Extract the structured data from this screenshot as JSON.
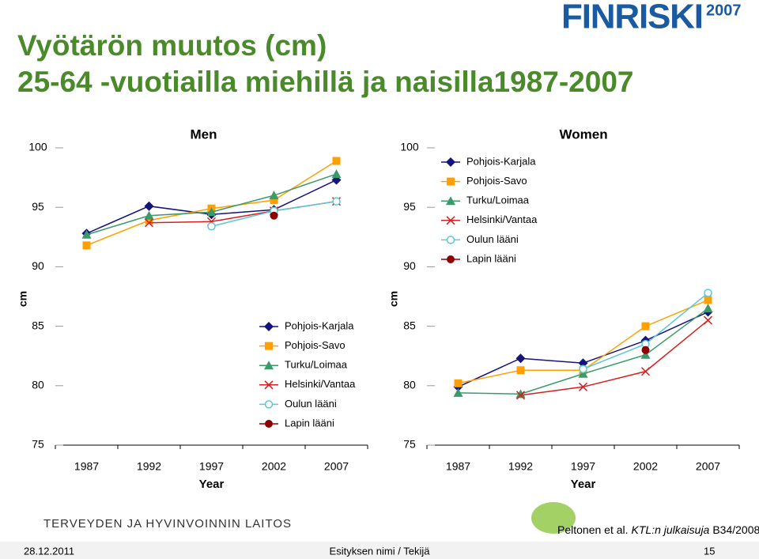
{
  "header": {
    "title": "Vyötärön muutos (cm)",
    "subtitle": "25-64 -vuotiailla miehillä ja naisilla1987-2007",
    "logo": "FINRISKI",
    "logo_year": "2007"
  },
  "chart_data": [
    {
      "type": "line",
      "title": "Men",
      "xlabel": "Year",
      "ylabel": "cm",
      "categories": [
        "1987",
        "1992",
        "1997",
        "2002",
        "2007"
      ],
      "ylim": [
        75,
        100
      ],
      "yticks": [
        75,
        80,
        85,
        90,
        95,
        100
      ],
      "legend": "lower right",
      "series": [
        {
          "name": "Pohjois-Karjala",
          "color": "#14147a",
          "marker": "diamond",
          "values": [
            92.8,
            95.1,
            94.4,
            94.8,
            97.3
          ]
        },
        {
          "name": "Pohjois-Savo",
          "color": "#ffa000",
          "marker": "square",
          "values": [
            91.8,
            93.9,
            94.9,
            95.6,
            98.9
          ]
        },
        {
          "name": "Turku/Loimaa",
          "color": "#3a9a6a",
          "marker": "triangle",
          "values": [
            92.7,
            94.3,
            94.6,
            96.0,
            97.8
          ]
        },
        {
          "name": "Helsinki/Vantaa",
          "color": "#d42020",
          "marker": "x",
          "values": [
            null,
            93.7,
            93.8,
            94.7,
            95.5
          ]
        },
        {
          "name": "Oulun lääni",
          "color": "#5bc8d8",
          "marker": "open-circle",
          "values": [
            null,
            null,
            93.4,
            94.7,
            95.5
          ]
        },
        {
          "name": "Lapin lääni",
          "color": "#8b0000",
          "marker": "circle",
          "values": [
            null,
            null,
            null,
            94.3,
            null
          ]
        }
      ]
    },
    {
      "type": "line",
      "title": "Women",
      "xlabel": "Year",
      "ylabel": "cm",
      "categories": [
        "1987",
        "1992",
        "1997",
        "2002",
        "2007"
      ],
      "ylim": [
        75,
        100
      ],
      "yticks": [
        75,
        80,
        85,
        90,
        95,
        100
      ],
      "legend": "upper left",
      "series": [
        {
          "name": "Pohjois-Karjala",
          "color": "#14147a",
          "marker": "diamond",
          "values": [
            79.9,
            82.3,
            81.9,
            83.8,
            86.2
          ]
        },
        {
          "name": "Pohjois-Savo",
          "color": "#ffa000",
          "marker": "square",
          "values": [
            80.2,
            81.3,
            81.3,
            85.0,
            87.2
          ]
        },
        {
          "name": "Turku/Loimaa",
          "color": "#3a9a6a",
          "marker": "triangle",
          "values": [
            79.4,
            79.3,
            81.0,
            82.6,
            86.5
          ]
        },
        {
          "name": "Helsinki/Vantaa",
          "color": "#d42020",
          "marker": "x",
          "values": [
            null,
            79.2,
            79.9,
            81.2,
            85.5
          ]
        },
        {
          "name": "Oulun lääni",
          "color": "#5bc8d8",
          "marker": "open-circle",
          "values": [
            null,
            null,
            81.4,
            83.5,
            87.8
          ]
        },
        {
          "name": "Lapin lääni",
          "color": "#8b0000",
          "marker": "circle",
          "values": [
            null,
            null,
            null,
            83.0,
            null
          ]
        }
      ]
    }
  ],
  "footer": {
    "institution": "TERVEYDEN JA HYVINVOINNIN LAITOS",
    "citation_author": "Peltonen et al.",
    "citation_series": "KTL:n julkaisuja",
    "citation_number": "B34/2008",
    "date": "28.12.2011",
    "presentation": "Esityksen nimi / Tekijä",
    "page": "15"
  }
}
